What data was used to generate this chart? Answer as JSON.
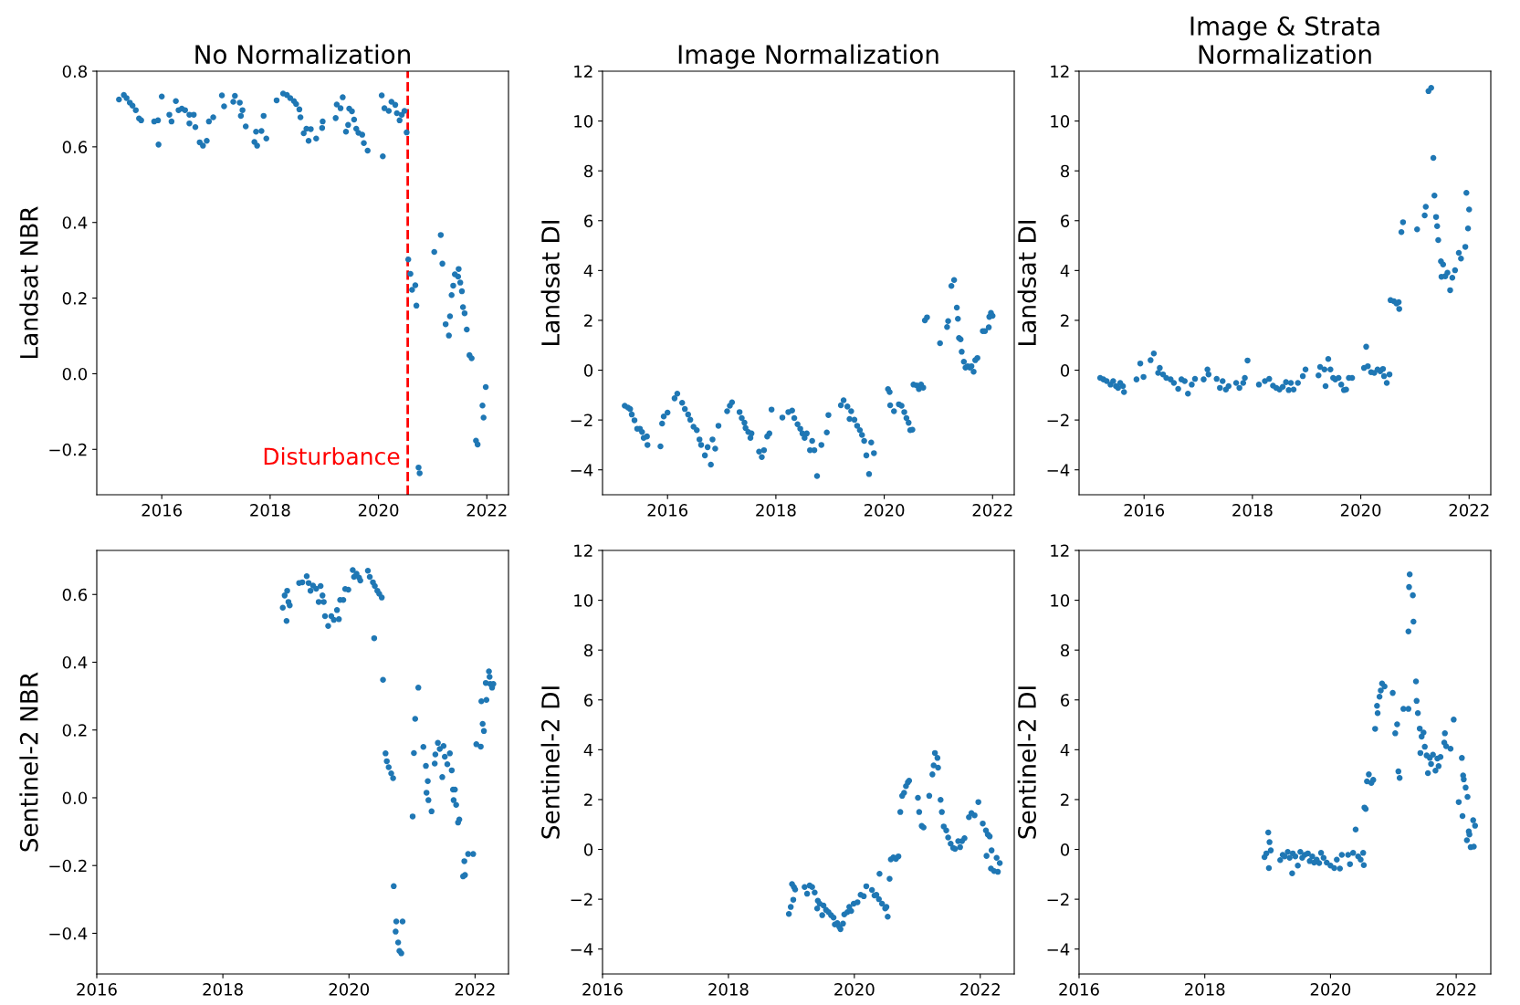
{
  "chart_data": [
    {
      "type": "scatter",
      "title": "No Normalization",
      "ylabel": "Landsat NBR",
      "color": "#1f77b4",
      "marker": "circle",
      "grid": false,
      "xlim": [
        2014.8,
        2022.4
      ],
      "ylim": [
        -0.32,
        0.8
      ],
      "xticks": [
        2016,
        2018,
        2020,
        2022
      ],
      "yticks": [
        -0.2,
        {
          "value": 0,
          "label": "0.0"
        },
        0.2,
        0.4,
        0.6,
        0.8
      ],
      "ref_lines": [
        {
          "axis": "x",
          "value": 2020.54,
          "label": "Disturbance",
          "color": "#ff0000",
          "line_style": "dashed"
        }
      ],
      "x": [
        2015.21,
        2015.3,
        2015.35,
        2015.41,
        2015.46,
        2015.52,
        2015.58,
        2015.62,
        2015.86,
        2015.93,
        2015.94,
        2016.0,
        2016.14,
        2016.18,
        2016.26,
        2016.31,
        2016.37,
        2016.43,
        2016.51,
        2016.51,
        2016.59,
        2016.62,
        2016.7,
        2016.76,
        2016.83,
        2016.87,
        2016.95,
        2017.11,
        2017.15,
        2017.32,
        2017.35,
        2017.44,
        2017.49,
        2017.46,
        2017.55,
        2017.71,
        2017.76,
        2017.74,
        2017.84,
        2017.88,
        2017.93,
        2018.12,
        2018.24,
        2018.31,
        2018.37,
        2018.44,
        2018.48,
        2018.54,
        2018.56,
        2018.62,
        2018.67,
        2018.71,
        2018.75,
        2018.85,
        2018.96,
        2018.97,
        2019.21,
        2019.23,
        2019.34,
        2019.3,
        2019.4,
        2019.44,
        2019.46,
        2019.51,
        2019.55,
        2019.59,
        2019.63,
        2019.7,
        2019.73,
        2019.8,
        2020.06,
        2020.08,
        2020.11,
        2020.19,
        2020.24,
        2020.31,
        2020.34,
        2020.39,
        2020.43,
        2020.48,
        2020.52,
        2020.55,
        2020.59,
        2020.62,
        2020.68,
        2020.7,
        2020.74,
        2020.76,
        2021.03,
        2021.15,
        2021.18,
        2021.24,
        2021.3,
        2021.32,
        2021.35,
        2021.38,
        2021.41,
        2021.47,
        2021.48,
        2021.51,
        2021.54,
        2021.56,
        2021.59,
        2021.63,
        2021.68,
        2021.72,
        2021.8,
        2021.83,
        2021.92,
        2021.94,
        2021.98
      ],
      "values": [
        0.725,
        0.737,
        0.729,
        0.717,
        0.709,
        0.697,
        0.675,
        0.67,
        0.667,
        0.67,
        0.606,
        0.733,
        0.685,
        0.667,
        0.721,
        0.697,
        0.701,
        0.697,
        0.685,
        0.662,
        0.685,
        0.652,
        0.612,
        0.603,
        0.616,
        0.667,
        0.678,
        0.736,
        0.707,
        0.719,
        0.735,
        0.717,
        0.697,
        0.682,
        0.654,
        0.613,
        0.603,
        0.64,
        0.642,
        0.682,
        0.622,
        0.723,
        0.741,
        0.737,
        0.729,
        0.721,
        0.713,
        0.699,
        0.678,
        0.636,
        0.648,
        0.616,
        0.647,
        0.622,
        0.65,
        0.667,
        0.676,
        0.712,
        0.731,
        0.702,
        0.64,
        0.658,
        0.701,
        0.694,
        0.672,
        0.648,
        0.637,
        0.632,
        0.61,
        0.59,
        0.736,
        0.575,
        0.702,
        0.695,
        0.719,
        0.711,
        0.689,
        0.67,
        0.685,
        0.695,
        0.638,
        0.302,
        0.264,
        0.222,
        0.234,
        0.18,
        -0.248,
        -0.263,
        0.322,
        0.367,
        0.291,
        0.131,
        0.101,
        0.152,
        0.208,
        0.233,
        0.263,
        0.257,
        0.277,
        0.241,
        0.218,
        0.176,
        0.16,
        0.117,
        0.049,
        0.041,
        -0.177,
        -0.187,
        -0.084,
        -0.116,
        -0.035
      ]
    },
    {
      "type": "scatter",
      "title": "Image Normalization",
      "ylabel": "Landsat DI",
      "color": "#1f77b4",
      "marker": "circle",
      "grid": false,
      "xlim": [
        2014.8,
        2022.4
      ],
      "ylim": [
        -5,
        12
      ],
      "xticks": [
        2016,
        2018,
        2020,
        2022
      ],
      "yticks": [
        -4,
        -2,
        0,
        2,
        4,
        6,
        8,
        10,
        12
      ],
      "x": [
        2015.21,
        2015.27,
        2015.31,
        2015.34,
        2015.39,
        2015.44,
        2015.49,
        2015.53,
        2015.56,
        2015.62,
        2015.63,
        2015.87,
        2015.9,
        2015.93,
        2016.0,
        2016.13,
        2016.18,
        2016.27,
        2016.32,
        2016.38,
        2016.42,
        2016.48,
        2016.54,
        2016.59,
        2016.62,
        2016.69,
        2016.74,
        2016.8,
        2016.83,
        2016.88,
        2016.94,
        2017.1,
        2017.15,
        2017.19,
        2017.33,
        2017.37,
        2017.42,
        2017.44,
        2017.49,
        2017.53,
        2017.55,
        2017.69,
        2017.74,
        2017.78,
        2017.84,
        2017.88,
        2017.92,
        2018.12,
        2018.23,
        2018.3,
        2018.34,
        2018.4,
        2018.45,
        2018.49,
        2018.53,
        2018.57,
        2018.63,
        2018.67,
        2018.71,
        2018.76,
        2018.84,
        2018.94,
        2018.97,
        2019.2,
        2019.25,
        2019.32,
        2019.39,
        2019.36,
        2019.45,
        2019.5,
        2019.55,
        2019.59,
        2019.63,
        2019.67,
        2019.72,
        2019.76,
        2019.81,
        2020.07,
        2020.1,
        2020.11,
        2020.18,
        2020.27,
        2020.32,
        2020.37,
        2020.41,
        2020.45,
        2020.48,
        2020.52,
        2020.54,
        2020.6,
        2020.64,
        2020.68,
        2020.72,
        2020.75,
        2020.79,
        2021.03,
        2021.16,
        2021.18,
        2021.24,
        2021.29,
        2021.34,
        2021.36,
        2021.38,
        2021.41,
        2021.43,
        2021.47,
        2021.5,
        2021.54,
        2021.58,
        2021.61,
        2021.65,
        2021.68,
        2021.72,
        2021.82,
        2021.86,
        2021.93,
        2021.94,
        2021.97,
        2022.0
      ],
      "values": [
        -1.43,
        -1.5,
        -1.56,
        -1.78,
        -2.01,
        -2.35,
        -2.35,
        -2.48,
        -2.72,
        -2.66,
        -3.0,
        -3.06,
        -2.14,
        -1.86,
        -1.7,
        -1.13,
        -0.94,
        -1.31,
        -1.56,
        -1.78,
        -1.99,
        -2.27,
        -2.41,
        -2.78,
        -3.0,
        -3.42,
        -3.09,
        -3.79,
        -2.78,
        -3.15,
        -2.23,
        -1.65,
        -1.43,
        -1.29,
        -1.68,
        -1.92,
        -2.11,
        -2.32,
        -2.48,
        -2.72,
        -2.54,
        -3.27,
        -3.49,
        -3.21,
        -2.66,
        -2.54,
        -1.58,
        -1.9,
        -1.68,
        -1.62,
        -1.92,
        -2.17,
        -2.35,
        -2.54,
        -2.72,
        -2.54,
        -3.21,
        -2.84,
        -3.21,
        -4.25,
        -3.0,
        -2.5,
        -1.8,
        -1.41,
        -1.21,
        -1.46,
        -1.65,
        -1.96,
        -1.99,
        -2.23,
        -2.41,
        -2.6,
        -2.84,
        -3.42,
        -4.17,
        -2.9,
        -3.33,
        -0.76,
        -0.88,
        -1.41,
        -1.65,
        -1.37,
        -1.43,
        -1.68,
        -1.92,
        -2.11,
        -2.41,
        -2.39,
        -0.58,
        -0.61,
        -0.76,
        -0.58,
        -0.7,
        2.0,
        2.12,
        1.08,
        1.73,
        1.97,
        3.38,
        3.62,
        2.51,
        2.06,
        1.29,
        1.24,
        0.74,
        0.34,
        0.1,
        0.16,
        0.1,
        0.16,
        -0.06,
        0.4,
        0.49,
        1.57,
        1.57,
        1.72,
        2.14,
        2.3,
        2.18
      ]
    },
    {
      "type": "scatter",
      "title": "Image & Strata\nNormalization",
      "ylabel": "Landsat DI",
      "color": "#1f77b4",
      "marker": "circle",
      "grid": false,
      "xlim": [
        2014.8,
        2022.4
      ],
      "ylim": [
        -5,
        12
      ],
      "xticks": [
        2016,
        2018,
        2020,
        2022
      ],
      "yticks": [
        -4,
        -2,
        0,
        2,
        4,
        6,
        8,
        10,
        12
      ],
      "x": [
        2015.19,
        2015.25,
        2015.31,
        2015.38,
        2015.43,
        2015.48,
        2015.52,
        2015.56,
        2015.61,
        2015.63,
        2015.86,
        2015.93,
        2015.99,
        2016.12,
        2016.18,
        2016.26,
        2016.29,
        2016.35,
        2016.41,
        2016.49,
        2016.55,
        2016.63,
        2016.69,
        2016.75,
        2016.81,
        2016.88,
        2016.94,
        2017.1,
        2017.17,
        2017.19,
        2017.34,
        2017.4,
        2017.45,
        2017.51,
        2017.56,
        2017.7,
        2017.76,
        2017.83,
        2017.86,
        2017.91,
        2018.12,
        2018.23,
        2018.31,
        2018.38,
        2018.44,
        2018.5,
        2018.56,
        2018.62,
        2018.67,
        2018.71,
        2018.76,
        2018.84,
        2018.93,
        2018.98,
        2019.22,
        2019.25,
        2019.33,
        2019.35,
        2019.4,
        2019.44,
        2019.49,
        2019.53,
        2019.59,
        2019.64,
        2019.69,
        2019.73,
        2019.78,
        2019.84,
        2020.06,
        2020.1,
        2020.13,
        2020.19,
        2020.25,
        2020.31,
        2020.36,
        2020.41,
        2020.43,
        2020.48,
        2020.53,
        2020.55,
        2020.61,
        2020.66,
        2020.7,
        2020.71,
        2020.75,
        2020.78,
        2021.04,
        2021.18,
        2021.2,
        2021.25,
        2021.3,
        2021.34,
        2021.36,
        2021.39,
        2021.41,
        2021.43,
        2021.48,
        2021.52,
        2021.49,
        2021.56,
        2021.6,
        2021.65,
        2021.69,
        2021.74,
        2021.81,
        2021.85,
        2021.93,
        2021.95,
        2021.98,
        2022.0
      ],
      "values": [
        -0.31,
        -0.37,
        -0.44,
        -0.58,
        -0.44,
        -0.64,
        -0.71,
        -0.51,
        -0.64,
        -0.88,
        -0.37,
        0.27,
        -0.27,
        0.4,
        0.67,
        -0.11,
        0.09,
        -0.17,
        -0.31,
        -0.37,
        -0.51,
        -0.75,
        -0.37,
        -0.44,
        -0.94,
        -0.58,
        -0.35,
        -0.37,
        0.03,
        -0.17,
        -0.35,
        -0.71,
        -0.44,
        -0.78,
        -0.64,
        -0.51,
        -0.71,
        -0.51,
        -0.31,
        0.39,
        -0.58,
        -0.44,
        -0.35,
        -0.62,
        -0.71,
        -0.78,
        -0.67,
        -0.48,
        -0.8,
        -0.51,
        -0.78,
        -0.51,
        -0.24,
        0.03,
        -0.21,
        0.13,
        0.03,
        -0.64,
        0.45,
        0.03,
        -0.31,
        -0.37,
        -0.31,
        -0.58,
        -0.8,
        -0.78,
        -0.31,
        -0.31,
        0.09,
        0.94,
        0.16,
        -0.08,
        -0.11,
        0.03,
        -0.04,
        0.05,
        -0.24,
        -0.51,
        -0.17,
        2.81,
        2.77,
        2.68,
        2.73,
        2.46,
        5.54,
        5.94,
        5.65,
        6.21,
        6.56,
        11.2,
        11.33,
        8.52,
        7.01,
        6.15,
        5.78,
        5.22,
        4.37,
        4.24,
        3.75,
        3.77,
        3.91,
        3.21,
        3.71,
        4.01,
        4.71,
        4.48,
        4.95,
        7.12,
        5.69,
        6.45
      ]
    },
    {
      "type": "scatter",
      "ylabel": "Sentinel-2 NBR",
      "color": "#1f77b4",
      "marker": "circle",
      "grid": false,
      "xlim": [
        2016,
        2022.53
      ],
      "ylim": [
        -0.52,
        0.73
      ],
      "xticks": [
        2016,
        2018,
        2020,
        2022
      ],
      "yticks": [
        -0.4,
        -0.2,
        {
          "value": 0,
          "label": "0.0"
        },
        0.2,
        0.4,
        0.6
      ],
      "x": [
        2018.95,
        2018.98,
        2019.01,
        2019.02,
        2019.04,
        2019.06,
        2019.21,
        2019.26,
        2019.33,
        2019.36,
        2019.39,
        2019.43,
        2019.48,
        2019.52,
        2019.55,
        2019.58,
        2019.6,
        2019.62,
        2019.67,
        2019.72,
        2019.76,
        2019.81,
        2019.84,
        2019.86,
        2019.91,
        2019.94,
        2019.99,
        2020.06,
        2020.08,
        2020.12,
        2020.16,
        2020.18,
        2020.3,
        2020.33,
        2020.38,
        2020.41,
        2020.45,
        2020.48,
        2020.52,
        2020.4,
        2020.54,
        2020.58,
        2020.6,
        2020.63,
        2020.67,
        2020.7,
        2020.71,
        2020.75,
        2020.85,
        2020.74,
        2020.78,
        2020.8,
        2020.83,
        2021.01,
        2021.03,
        2021.05,
        2021.1,
        2021.18,
        2021.22,
        2021.25,
        2021.23,
        2021.26,
        2021.31,
        2021.36,
        2021.37,
        2021.41,
        2021.44,
        2021.48,
        2021.5,
        2021.52,
        2021.56,
        2021.6,
        2021.63,
        2021.65,
        2021.68,
        2021.66,
        2021.7,
        2021.73,
        2021.75,
        2021.81,
        2021.84,
        2021.83,
        2021.89,
        2021.97,
        2022.02,
        2022.09,
        2022.1,
        2022.12,
        2022.14,
        2022.18,
        2022.17,
        2022.22,
        2022.23,
        2022.24,
        2022.27,
        2022.29
      ],
      "values": [
        0.561,
        0.597,
        0.522,
        0.611,
        0.578,
        0.568,
        0.634,
        0.636,
        0.654,
        0.634,
        0.611,
        0.626,
        0.617,
        0.578,
        0.625,
        0.597,
        0.578,
        0.536,
        0.507,
        0.536,
        0.525,
        0.554,
        0.527,
        0.584,
        0.584,
        0.616,
        0.614,
        0.672,
        0.652,
        0.661,
        0.65,
        0.641,
        0.67,
        0.652,
        0.636,
        0.625,
        0.611,
        0.602,
        0.591,
        0.471,
        0.348,
        0.131,
        0.108,
        0.09,
        0.072,
        0.058,
        -0.261,
        -0.365,
        -0.365,
        -0.395,
        -0.427,
        -0.452,
        -0.459,
        -0.055,
        0.132,
        0.233,
        0.325,
        0.15,
        0.094,
        0.049,
        0.015,
        -0.007,
        -0.04,
        0.101,
        0.128,
        0.162,
        0.144,
        0.061,
        0.153,
        0.121,
        0.099,
        0.131,
        0.081,
        0.024,
        0.024,
        -0.007,
        -0.021,
        -0.073,
        -0.064,
        -0.232,
        -0.228,
        -0.187,
        -0.166,
        -0.166,
        0.158,
        0.151,
        0.285,
        0.218,
        0.197,
        0.289,
        0.339,
        0.373,
        0.357,
        0.336,
        0.325,
        0.336
      ]
    },
    {
      "type": "scatter",
      "ylabel": "Sentinel-2 DI",
      "color": "#1f77b4",
      "marker": "circle",
      "grid": false,
      "xlim": [
        2016,
        2022.54
      ],
      "ylim": [
        -5,
        12
      ],
      "xticks": [
        2016,
        2018,
        2020,
        2022
      ],
      "yticks": [
        -4,
        -2,
        0,
        2,
        4,
        6,
        8,
        10,
        12
      ],
      "x": [
        2018.96,
        2018.99,
        2019.01,
        2019.03,
        2019.04,
        2019.06,
        2019.21,
        2019.25,
        2019.29,
        2019.33,
        2019.37,
        2019.42,
        2019.41,
        2019.45,
        2019.49,
        2019.51,
        2019.55,
        2019.59,
        2019.63,
        2019.67,
        2019.69,
        2019.73,
        2019.76,
        2019.78,
        2019.82,
        2019.84,
        2019.89,
        2019.92,
        2019.95,
        2019.99,
        2020.05,
        2020.1,
        2020.15,
        2020.19,
        2020.28,
        2020.32,
        2020.35,
        2020.39,
        2020.44,
        2020.49,
        2020.51,
        2020.53,
        2020.4,
        2020.56,
        2020.58,
        2020.62,
        2020.66,
        2020.7,
        2020.73,
        2020.76,
        2020.79,
        2020.82,
        2020.85,
        2020.87,
        2021.01,
        2021.03,
        2021.07,
        2021.1,
        2021.19,
        2021.24,
        2021.26,
        2021.28,
        2021.32,
        2021.33,
        2021.37,
        2021.39,
        2021.42,
        2021.46,
        2021.49,
        2021.53,
        2021.57,
        2021.6,
        2021.65,
        2021.68,
        2021.71,
        2021.75,
        2021.82,
        2021.86,
        2021.91,
        2021.97,
        2022.04,
        2022.09,
        2022.12,
        2022.15,
        2022.1,
        2022.18,
        2022.17,
        2022.22,
        2022.26,
        2022.28,
        2022.31
      ],
      "values": [
        -2.59,
        -2.31,
        -1.39,
        -2.02,
        -1.51,
        -1.61,
        -1.51,
        -1.78,
        -1.45,
        -1.51,
        -1.73,
        -2.06,
        -2.37,
        -2.18,
        -2.64,
        -2.25,
        -2.43,
        -2.52,
        -2.64,
        -2.74,
        -3.01,
        -2.96,
        -3.1,
        -3.2,
        -2.98,
        -2.61,
        -2.52,
        -2.31,
        -2.47,
        -2.18,
        -2.12,
        -1.82,
        -1.88,
        -1.48,
        -1.63,
        -1.85,
        -1.82,
        -2.0,
        -2.18,
        -2.37,
        -2.31,
        -2.7,
        -0.98,
        -1.18,
        -0.4,
        -0.32,
        -0.38,
        -0.28,
        1.5,
        2.15,
        2.27,
        2.54,
        2.69,
        2.76,
        2.07,
        1.5,
        0.94,
        0.88,
        2.15,
        3.01,
        3.37,
        3.87,
        3.67,
        3.28,
        1.99,
        1.5,
        0.92,
        0.76,
        0.48,
        0.23,
        0.06,
        0.02,
        0.33,
        0.09,
        0.33,
        0.45,
        1.29,
        1.46,
        1.37,
        1.9,
        1.04,
        0.76,
        0.6,
        0.52,
        -0.26,
        -0.04,
        -0.77,
        -0.87,
        -0.34,
        -0.9,
        -0.55
      ]
    },
    {
      "type": "scatter",
      "ylabel": "Sentinel-2 DI",
      "color": "#1f77b4",
      "marker": "circle",
      "grid": false,
      "xlim": [
        2016,
        2022.55
      ],
      "ylim": [
        -5,
        12
      ],
      "xticks": [
        2016,
        2018,
        2020,
        2022
      ],
      "yticks": [
        -4,
        -2,
        0,
        2,
        4,
        6,
        8,
        10,
        12
      ],
      "x": [
        2018.95,
        2018.98,
        2019.01,
        2019.03,
        2019.02,
        2019.05,
        2019.2,
        2019.24,
        2019.27,
        2019.32,
        2019.35,
        2019.39,
        2019.4,
        2019.44,
        2019.48,
        2019.52,
        2019.55,
        2019.59,
        2019.64,
        2019.67,
        2019.71,
        2019.74,
        2019.78,
        2019.82,
        2019.85,
        2019.89,
        2019.94,
        2020.0,
        2020.06,
        2020.1,
        2020.15,
        2020.18,
        2020.28,
        2020.31,
        2020.36,
        2020.4,
        2020.44,
        2020.48,
        2020.52,
        2020.53,
        2020.54,
        2020.56,
        2020.58,
        2020.61,
        2020.65,
        2020.68,
        2020.71,
        2020.74,
        2020.75,
        2020.78,
        2020.8,
        2020.82,
        2020.86,
        2020.99,
        2021.03,
        2021.06,
        2021.08,
        2021.1,
        2021.16,
        2021.24,
        2021.24,
        2021.25,
        2021.26,
        2021.31,
        2021.32,
        2021.36,
        2021.37,
        2021.39,
        2021.42,
        2021.43,
        2021.45,
        2021.48,
        2021.5,
        2021.53,
        2021.55,
        2021.58,
        2021.6,
        2021.63,
        2021.67,
        2021.7,
        2021.72,
        2021.75,
        2021.82,
        2021.81,
        2021.84,
        2021.91,
        2021.96,
        2022.04,
        2022.09,
        2022.11,
        2022.12,
        2022.1,
        2022.15,
        2022.18,
        2022.17,
        2022.2,
        2022.21,
        2022.23,
        2022.27,
        2022.28,
        2022.3
      ],
      "values": [
        -0.31,
        -0.16,
        0.68,
        0.29,
        -0.75,
        -0.04,
        -0.43,
        -0.22,
        -0.28,
        -0.1,
        -0.34,
        -0.96,
        -0.16,
        -0.28,
        -0.65,
        -0.1,
        -0.34,
        -0.22,
        -0.16,
        -0.47,
        -0.28,
        -0.53,
        -0.41,
        -0.55,
        -0.14,
        -0.34,
        -0.53,
        -0.65,
        -0.75,
        -0.41,
        -0.77,
        -0.22,
        -0.22,
        -0.59,
        -0.14,
        0.8,
        -0.28,
        -0.41,
        -0.14,
        -0.63,
        1.68,
        1.62,
        2.73,
        3.01,
        2.67,
        2.79,
        4.84,
        5.76,
        5.47,
        6.13,
        6.38,
        6.66,
        6.54,
        6.28,
        4.66,
        5.02,
        3.13,
        2.87,
        5.64,
        5.64,
        8.75,
        10.53,
        11.04,
        10.2,
        9.14,
        6.74,
        5.96,
        5.47,
        4.85,
        3.87,
        4.53,
        4.69,
        4.12,
        3.77,
        3.06,
        3.67,
        3.43,
        3.8,
        3.16,
        3.65,
        3.34,
        3.71,
        4.66,
        4.29,
        4.14,
        4.04,
        5.21,
        1.9,
        3.67,
        2.97,
        2.81,
        1.34,
        2.48,
        2.11,
        0.37,
        0.72,
        0.6,
        0.09,
        1.17,
        0.11,
        0.95
      ]
    }
  ]
}
